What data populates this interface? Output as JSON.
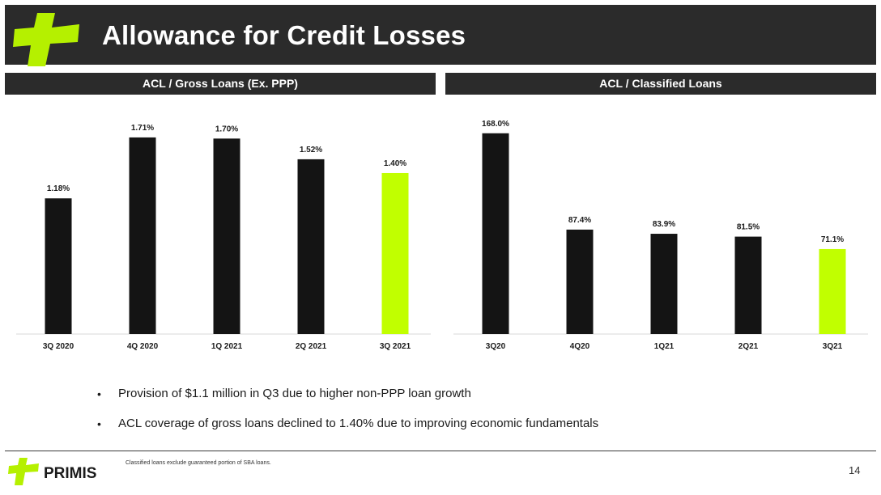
{
  "header": {
    "title": "Allowance for Credit Losses"
  },
  "colors": {
    "bar_default": "#141414",
    "bar_highlight": "#c1ff00",
    "header_bg": "#2b2b2b",
    "brand_green": "#b5f000"
  },
  "chart_data": [
    {
      "type": "bar",
      "title": "ACL / Gross Loans (Ex. PPP)",
      "categories": [
        "3Q 2020",
        "4Q 2020",
        "1Q 2021",
        "2Q 2021",
        "3Q 2021"
      ],
      "values": [
        1.18,
        1.71,
        1.7,
        1.52,
        1.4
      ],
      "labels": [
        "1.18%",
        "1.71%",
        "1.70%",
        "1.52%",
        "1.40%"
      ],
      "highlight_index": 4,
      "ylim": [
        0,
        1.85
      ],
      "grid": false,
      "legend": "none"
    },
    {
      "type": "bar",
      "title": "ACL / Classified Loans",
      "categories": [
        "3Q20",
        "4Q20",
        "1Q21",
        "2Q21",
        "3Q21"
      ],
      "values": [
        168.0,
        87.4,
        83.9,
        81.5,
        71.1
      ],
      "labels": [
        "168.0%",
        "87.4%",
        "83.9%",
        "81.5%",
        "71.1%"
      ],
      "highlight_index": 4,
      "ylim": [
        0,
        178
      ],
      "grid": false,
      "legend": "none"
    }
  ],
  "bullets": [
    "Provision of $1.1 million in Q3 due to higher non-PPP loan growth",
    "ACL coverage of gross loans declined to 1.40% due to improving economic fundamentals"
  ],
  "footer": {
    "brand": "PRIMIS",
    "footnote": "Classified loans exclude guaranteed portion of SBA loans.",
    "page_number": "14"
  }
}
